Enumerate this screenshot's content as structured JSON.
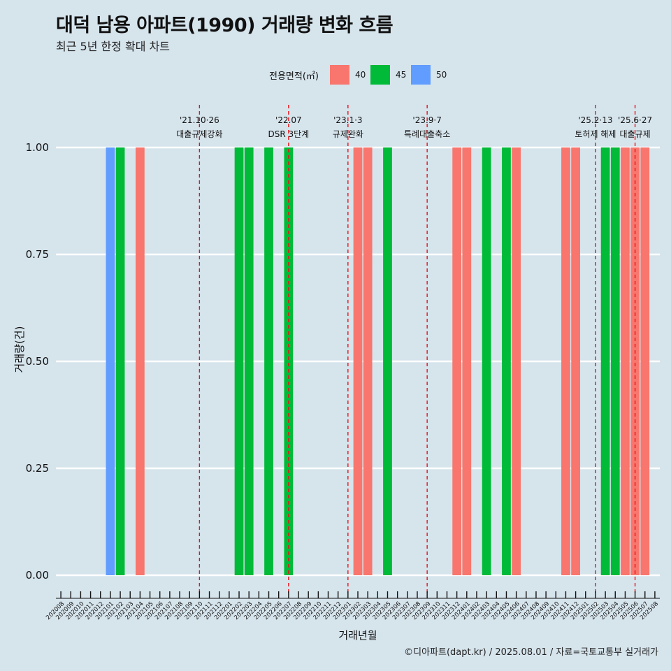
{
  "header": {
    "title": "대덕 남용 아파트(1990) 거래량 변화 흐름",
    "subtitle": "최근 5년 한정 확대 차트"
  },
  "legend": {
    "title": "전용면적(㎡)",
    "items": [
      {
        "label": "40",
        "color": "#f8766d"
      },
      {
        "label": "45",
        "color": "#00ba38"
      },
      {
        "label": "50",
        "color": "#619cff"
      }
    ]
  },
  "caption": "©디아파트(dapt.kr) / 2025.08.01 / 자료=국토교통부 실거래가",
  "chart_data": {
    "type": "bar",
    "xlabel": "거래년월",
    "ylabel": "거래량(건)",
    "ylim": [
      0,
      1
    ],
    "yticks": [
      "0.00",
      "0.25",
      "0.50",
      "0.75",
      "1.00"
    ],
    "categories": [
      "202008",
      "202009",
      "202010",
      "202011",
      "202012",
      "202101",
      "202102",
      "202103",
      "202104",
      "202105",
      "202106",
      "202107",
      "202108",
      "202109",
      "202110",
      "202111",
      "202112",
      "202201",
      "202202",
      "202203",
      "202204",
      "202205",
      "202206",
      "202207",
      "202208",
      "202209",
      "202210",
      "202211",
      "202212",
      "202301",
      "202302",
      "202303",
      "202304",
      "202305",
      "202306",
      "202307",
      "202308",
      "202309",
      "202310",
      "202311",
      "202312",
      "202401",
      "202402",
      "202403",
      "202404",
      "202405",
      "202406",
      "202407",
      "202408",
      "202409",
      "202410",
      "202411",
      "202412",
      "202501",
      "202502",
      "202503",
      "202504",
      "202505",
      "202506",
      "202507",
      "202508"
    ],
    "bars": [
      {
        "month": "202101",
        "area": "50",
        "value": 1
      },
      {
        "month": "202102",
        "area": "45",
        "value": 1
      },
      {
        "month": "202104",
        "area": "40",
        "value": 1
      },
      {
        "month": "202202",
        "area": "45",
        "value": 1
      },
      {
        "month": "202203",
        "area": "45",
        "value": 1
      },
      {
        "month": "202205",
        "area": "45",
        "value": 1
      },
      {
        "month": "202207",
        "area": "45",
        "value": 1
      },
      {
        "month": "202302",
        "area": "40",
        "value": 1
      },
      {
        "month": "202303",
        "area": "40",
        "value": 1
      },
      {
        "month": "202305",
        "area": "45",
        "value": 1
      },
      {
        "month": "202312",
        "area": "40",
        "value": 1
      },
      {
        "month": "202401",
        "area": "40",
        "value": 1
      },
      {
        "month": "202403",
        "area": "45",
        "value": 1
      },
      {
        "month": "202405",
        "area": "45",
        "value": 1
      },
      {
        "month": "202406",
        "area": "40",
        "value": 1
      },
      {
        "month": "202411",
        "area": "40",
        "value": 1
      },
      {
        "month": "202412",
        "area": "40",
        "value": 1
      },
      {
        "month": "202503",
        "area": "45",
        "value": 1
      },
      {
        "month": "202504",
        "area": "45",
        "value": 1
      },
      {
        "month": "202505",
        "area": "40",
        "value": 1
      },
      {
        "month": "202506",
        "area": "40",
        "value": 1
      },
      {
        "month": "202507",
        "area": "40",
        "value": 1
      }
    ],
    "events": [
      {
        "month": "202110",
        "date": "'21.10·26",
        "label": "대출규제강화"
      },
      {
        "month": "202207",
        "date": "'22.07",
        "label": "DSR 3단계"
      },
      {
        "month": "202301",
        "date": "'23.1·3",
        "label": "규제완화"
      },
      {
        "month": "202309",
        "date": "'23.9·7",
        "label": "특례대출축소"
      },
      {
        "month": "202502",
        "date": "'25.2·13",
        "label": "토허제 해제"
      },
      {
        "month": "202506",
        "date": "'25.6·27",
        "label": "대출규제"
      }
    ]
  }
}
